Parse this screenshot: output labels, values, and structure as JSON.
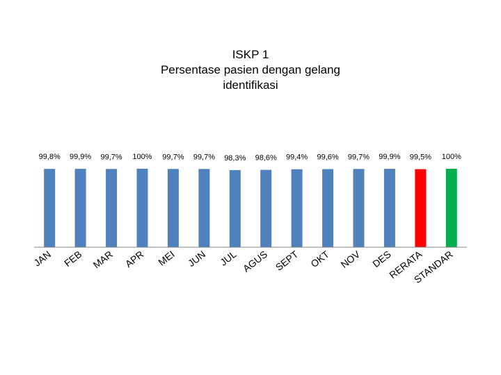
{
  "chart_data": {
    "type": "bar",
    "title_lines": [
      "ISKP 1",
      "Persentase pasien dengan gelang",
      "identifikasi"
    ],
    "categories": [
      "JAN",
      "FEB",
      "MAR",
      "APR",
      "MEI",
      "JUN",
      "JUL",
      "AGUS",
      "SEPT",
      "OKT",
      "NOV",
      "DES",
      "RERATA",
      "STANDAR"
    ],
    "values": [
      99.8,
      99.9,
      99.7,
      100,
      99.7,
      99.7,
      98.3,
      98.6,
      99.4,
      99.6,
      99.7,
      99.9,
      99.5,
      100
    ],
    "data_labels": [
      "99,8%",
      "99,9%",
      "99,7%",
      "100%",
      "99,7%",
      "99,7%",
      "98,3%",
      "98,6%",
      "99,4%",
      "99,6%",
      "99,7%",
      "99,9%",
      "99,5%",
      "100%"
    ],
    "bar_colors": [
      "#4f81bd",
      "#4f81bd",
      "#4f81bd",
      "#4f81bd",
      "#4f81bd",
      "#4f81bd",
      "#4f81bd",
      "#4f81bd",
      "#4f81bd",
      "#4f81bd",
      "#4f81bd",
      "#4f81bd",
      "#ff0000",
      "#00b050"
    ],
    "xlabel": "",
    "ylabel": "",
    "ylim": [
      0,
      100
    ],
    "grid": false,
    "legend": "none",
    "axis_line_color": "#868686"
  }
}
